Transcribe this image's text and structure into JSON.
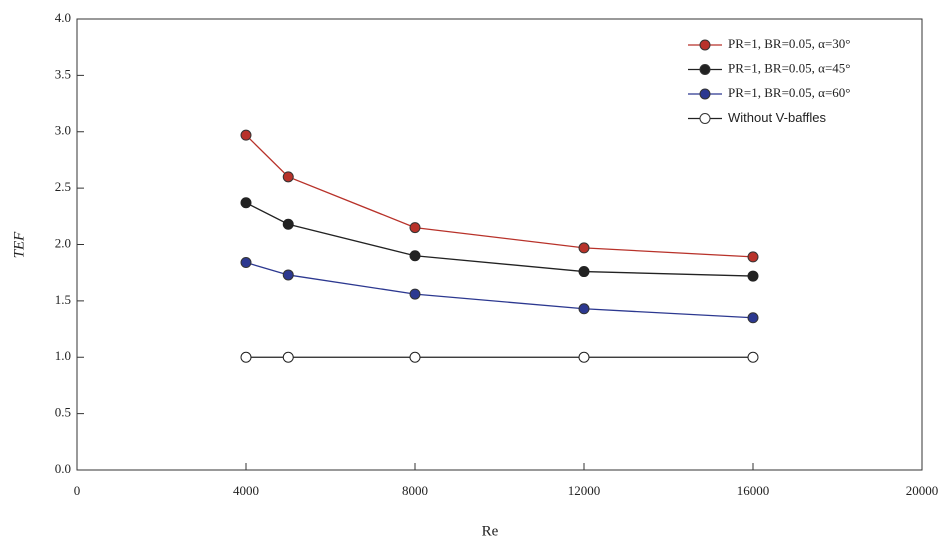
{
  "chart_data": {
    "type": "line",
    "x_label": "Re",
    "y_label": "TEF",
    "xlim": [
      0,
      20000
    ],
    "ylim": [
      0,
      4
    ],
    "xticks": [
      0,
      4000,
      8000,
      12000,
      16000,
      20000
    ],
    "yticks": [
      {
        "value": 0,
        "label": "0.0"
      },
      0.5,
      {
        "value": 1,
        "label": "1.0"
      },
      1.5,
      {
        "value": 2,
        "label": "2.0"
      },
      2.5,
      {
        "value": 3,
        "label": "3.0"
      },
      3.5,
      {
        "value": 4,
        "label": "4.0"
      }
    ],
    "legend": "top-right",
    "x": [
      4000,
      5000,
      8000,
      12000,
      16000
    ],
    "series": [
      {
        "name": "PR=1, BR=0.05, α=30°",
        "color": "#b8322a",
        "values": [
          2.97,
          2.6,
          2.15,
          1.97,
          1.89
        ]
      },
      {
        "name": "PR=1, BR=0.05, α=45°",
        "color": "#222222",
        "values": [
          2.37,
          2.18,
          1.9,
          1.76,
          1.72
        ]
      },
      {
        "name": "PR=1, BR=0.05, α=60°",
        "color": "#2c3890",
        "values": [
          1.84,
          1.73,
          1.56,
          1.43,
          1.35
        ]
      },
      {
        "name": "Without V-baffles",
        "color": "#222222",
        "marker_fill": "#ffffff",
        "values": [
          1,
          1,
          1,
          1,
          1
        ]
      }
    ]
  }
}
